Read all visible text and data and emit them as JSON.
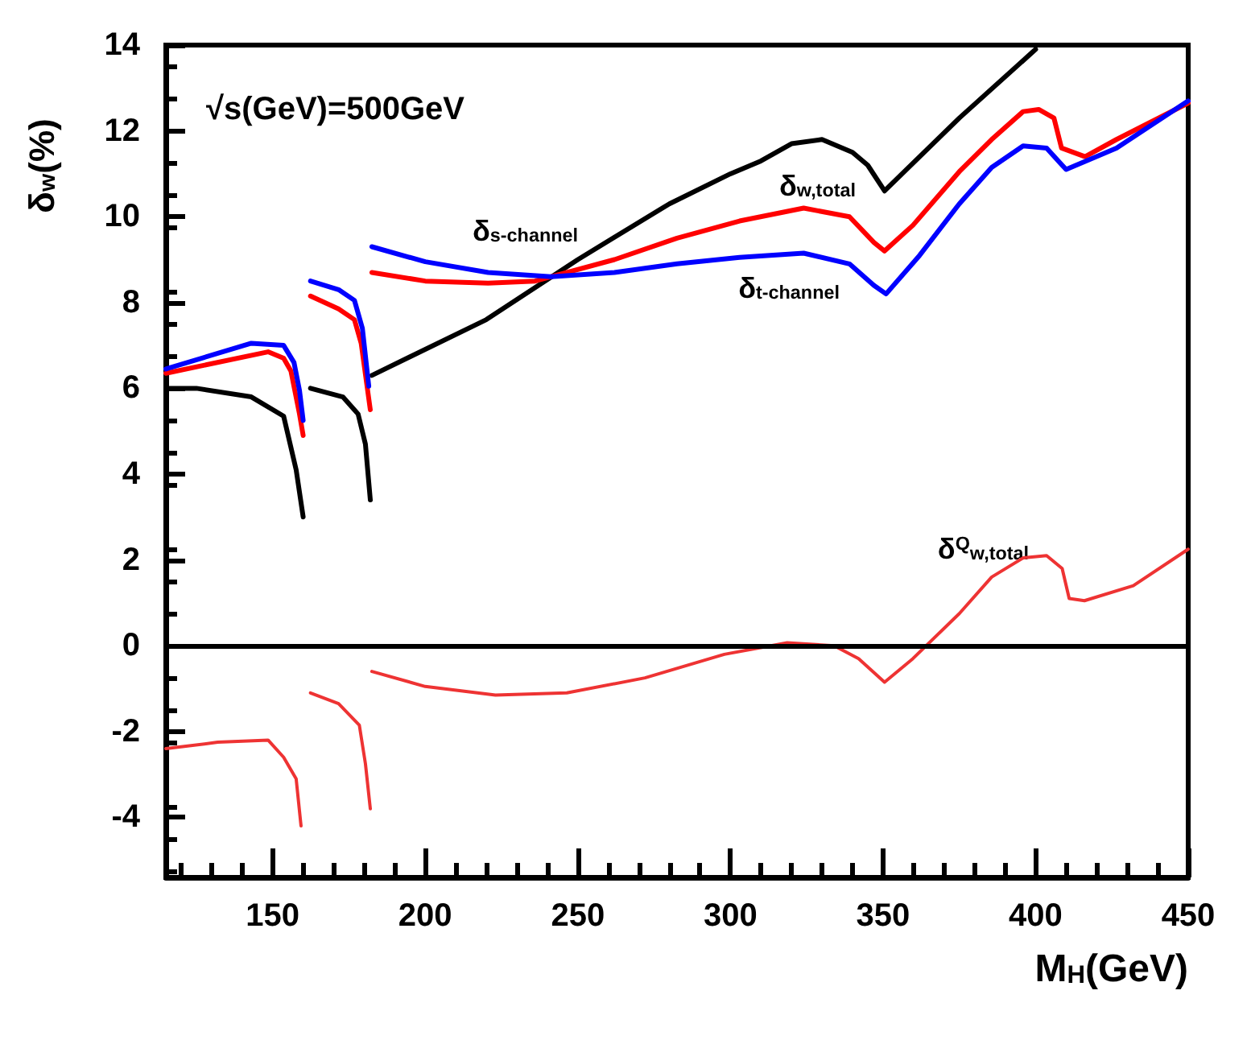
{
  "chart_data": {
    "type": "line",
    "xlabel": "M$_{H}$(GeV)",
    "ylabel": "δ$_{w}$(%)",
    "xlim": [
      115,
      450
    ],
    "xticks": [
      150,
      200,
      250,
      300,
      350,
      400,
      450
    ],
    "ylim": [
      -5.4,
      14
    ],
    "yticks": [
      -4,
      -2,
      0,
      2,
      4,
      6,
      8,
      10,
      12,
      14
    ],
    "grid": false,
    "legend": false,
    "marker": "none",
    "line_style": "solid",
    "series": [
      {
        "name": "δ$_{s-channel}$",
        "color": "#000000",
        "x": [
          115,
          125,
          143,
          153.6,
          157.7,
          160,
          161.2,
          162.4,
          173,
          178,
          180.4,
          182,
          182.2,
          182.5,
          220,
          250,
          280,
          300,
          310,
          320,
          330,
          340,
          345,
          350.5,
          375,
          400
        ],
        "values": [
          6.0,
          6.0,
          5.8,
          5.35,
          4.1,
          3.0,
          null,
          6.0,
          5.8,
          5.4,
          4.7,
          3.4,
          null,
          6.3,
          7.6,
          9.0,
          10.3,
          11.0,
          11.3,
          11.7,
          11.8,
          11.5,
          11.2,
          10.6,
          12.3,
          13.9
        ]
      },
      {
        "name": "δ$_{w,total}$",
        "color": "#ff0000",
        "x": [
          115,
          148.5,
          153.6,
          156,
          158.8,
          160,
          161.2,
          162.4,
          171.6,
          176.8,
          179,
          182,
          182.2,
          182.5,
          200,
          220.6,
          236,
          262,
          282.5,
          303,
          324,
          339,
          347,
          350.5,
          359.8,
          375,
          385.6,
          395.9,
          401,
          406,
          408.5,
          416.2,
          426.5,
          450
        ],
        "values": [
          6.35,
          6.85,
          6.7,
          6.4,
          5.4,
          4.9,
          null,
          8.15,
          7.85,
          7.6,
          7.05,
          5.5,
          null,
          8.7,
          8.5,
          8.45,
          8.5,
          9.0,
          9.5,
          9.9,
          10.2,
          10.0,
          9.4,
          9.2,
          9.8,
          11.05,
          11.8,
          12.45,
          12.5,
          12.3,
          11.6,
          11.4,
          11.8,
          12.65
        ]
      },
      {
        "name": "δ$_{t-channel}$",
        "color": "#0000ff",
        "x": [
          115,
          143,
          153.6,
          157,
          158.8,
          160,
          161.2,
          162.4,
          171.6,
          176.8,
          179.4,
          181.5,
          182.2,
          182.5,
          200,
          220.6,
          241.2,
          262,
          282.5,
          303,
          324,
          339,
          347,
          351,
          362,
          375,
          385.6,
          395.9,
          403.6,
          408.7,
          410,
          426.5,
          450
        ],
        "values": [
          6.45,
          7.05,
          7.0,
          6.6,
          5.95,
          5.25,
          null,
          8.5,
          8.3,
          8.05,
          7.4,
          6.05,
          null,
          9.3,
          8.95,
          8.7,
          8.6,
          8.7,
          8.9,
          9.05,
          9.15,
          8.9,
          8.4,
          8.2,
          9.1,
          10.3,
          11.15,
          11.65,
          11.6,
          11.2,
          11.1,
          11.6,
          12.7
        ]
      },
      {
        "name": "δ$^{Q}$$_{w,total}$",
        "color": "#ee3333",
        "x": [
          115,
          132,
          148.5,
          153.6,
          157.7,
          159.3,
          161.2,
          162.4,
          171.6,
          178.4,
          180.4,
          182,
          182.2,
          182.5,
          200,
          223,
          246.4,
          272,
          298,
          318.6,
          334,
          342,
          350.5,
          359.8,
          375,
          385.6,
          396,
          403.6,
          408.7,
          411,
          416,
          432,
          450
        ],
        "values": [
          -2.4,
          -2.25,
          -2.2,
          -2.6,
          -3.1,
          -4.2,
          null,
          -1.1,
          -1.35,
          -1.85,
          -2.75,
          -3.8,
          null,
          -0.6,
          -0.95,
          -1.15,
          -1.1,
          -0.75,
          -0.2,
          0.07,
          0,
          -0.3,
          -0.85,
          -0.3,
          0.75,
          1.6,
          2.05,
          2.1,
          1.8,
          1.1,
          1.05,
          1.4,
          2.25
        ]
      }
    ],
    "ref_lines": [
      {
        "axis": "y",
        "value": 0,
        "color": "#000000"
      }
    ],
    "annotations": [
      "√s(GeV)=500GeV"
    ]
  }
}
